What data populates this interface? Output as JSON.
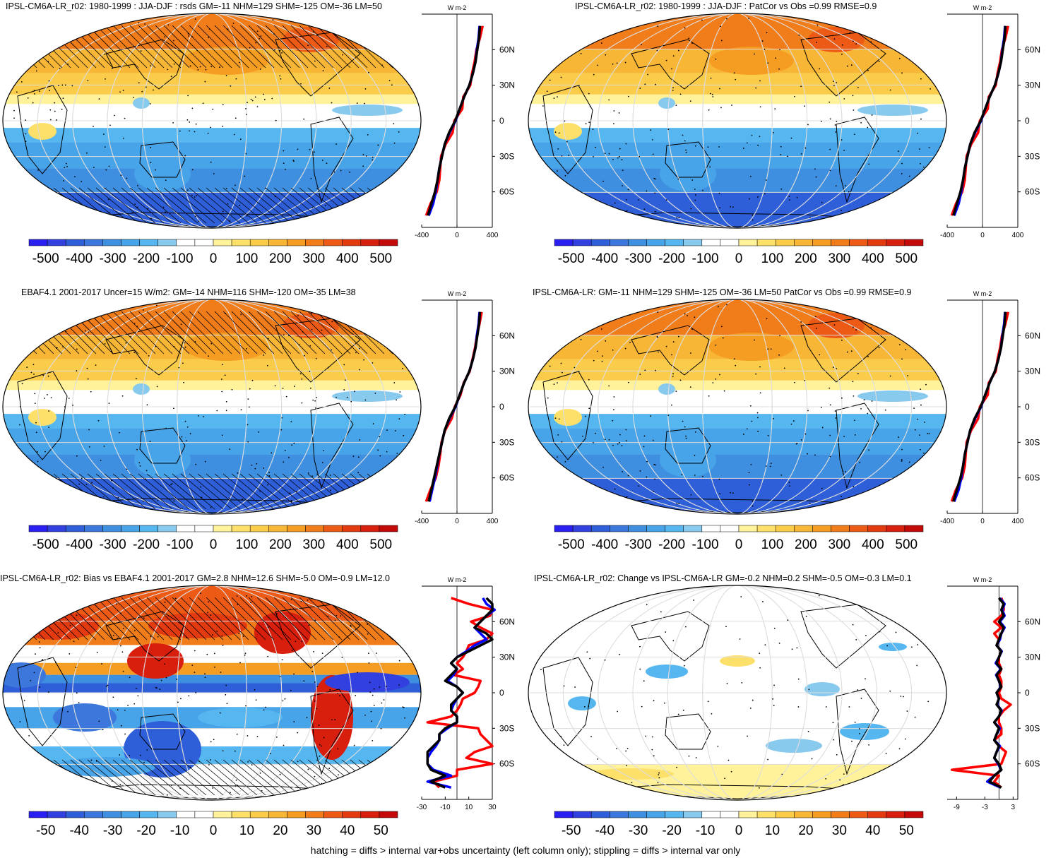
{
  "footnote": "hatching = diffs > internal var+obs uncertainty (left column only); stippling = diffs > internal var only",
  "colors": {
    "land_outline": "#000000",
    "graticule": "#dddddd",
    "model_line": "#0000ff",
    "obs_line": "#ff0000",
    "mean_line": "#000000"
  },
  "palette": [
    "#2a1ff2",
    "#3340e0",
    "#2f5fd8",
    "#3c78dc",
    "#3f8fe0",
    "#48a4e8",
    "#56b7f0",
    "#88c9ee",
    "#ffffff",
    "#ffffff",
    "#fff29a",
    "#fde06a",
    "#fbcc4a",
    "#f8b636",
    "#f59c22",
    "#f17c1a",
    "#ec5a15",
    "#e43a10",
    "#d81e0c",
    "#c40a08"
  ],
  "chart_data": [
    {
      "type": "heatmap",
      "title": "IPSL-CM6A-LR_r02: 1980-1999 : JJA-DJF : rsds GM=-11 NHM=129 SHM=-125 OM=-36 LM=50",
      "colorbar_ticks": [
        "-500",
        "-400",
        "-300",
        "-200",
        "-100",
        "0",
        "100",
        "200",
        "300",
        "400",
        "500"
      ],
      "colorbar_range": [
        -550,
        550
      ],
      "zonal_profile": {
        "unit": "W m-2",
        "xlim": [
          -400,
          400
        ],
        "xticks": [
          "-400",
          "0",
          "400"
        ],
        "lat_ticks": [
          "60N",
          "30N",
          "0",
          "30S",
          "60S"
        ],
        "lat": [
          -80,
          -70,
          -60,
          -50,
          -40,
          -30,
          -20,
          -10,
          0,
          10,
          20,
          30,
          40,
          50,
          60,
          70,
          80
        ],
        "series": [
          {
            "color": "black",
            "values": [
              -330,
              -290,
              -250,
              -220,
              -200,
              -170,
              -140,
              -90,
              -20,
              30,
              80,
              140,
              180,
              210,
              230,
              250,
              260
            ]
          },
          {
            "color": "blue",
            "values": [
              -320,
              -270,
              -240,
              -220,
              -200,
              -170,
              -140,
              -85,
              -15,
              30,
              80,
              140,
              180,
              210,
              225,
              245,
              255
            ]
          },
          {
            "color": "red",
            "values": [
              -350,
              -300,
              -230,
              -200,
              -190,
              -180,
              -130,
              -50,
              -30,
              60,
              70,
              150,
              170,
              200,
              220,
              260,
              290
            ]
          }
        ]
      }
    },
    {
      "type": "heatmap",
      "title": "IPSL-CM6A-LR_r02: 1980-1999 : JJA-DJF : PatCor vs Obs =0.99 RMSE=0.9",
      "colorbar_ticks": [
        "-500",
        "-400",
        "-300",
        "-200",
        "-100",
        "0",
        "100",
        "200",
        "300",
        "400",
        "500"
      ],
      "colorbar_range": [
        -550,
        550
      ],
      "zonal_profile": {
        "unit": "W m-2",
        "xlim": [
          -400,
          400
        ],
        "xticks": [
          "-400",
          "0",
          "400"
        ],
        "lat_ticks": [
          "60N",
          "30N",
          "0",
          "30S",
          "60S"
        ],
        "lat": [
          -80,
          -70,
          -60,
          -50,
          -40,
          -30,
          -20,
          -10,
          0,
          10,
          20,
          30,
          40,
          50,
          60,
          70,
          80
        ],
        "series": [
          {
            "color": "black",
            "values": [
              -330,
              -290,
              -250,
              -220,
              -200,
              -170,
              -140,
              -90,
              -20,
              30,
              80,
              140,
              180,
              210,
              230,
              250,
              260
            ]
          },
          {
            "color": "blue",
            "values": [
              -320,
              -270,
              -240,
              -220,
              -200,
              -170,
              -140,
              -85,
              -15,
              30,
              80,
              140,
              180,
              210,
              225,
              245,
              255
            ]
          },
          {
            "color": "red",
            "values": [
              -350,
              -300,
              -230,
              -200,
              -190,
              -180,
              -130,
              -50,
              -30,
              60,
              70,
              150,
              170,
              200,
              220,
              260,
              290
            ]
          }
        ]
      }
    },
    {
      "type": "heatmap",
      "title": "EBAF4.1 2001-2017 Uncer=15 W/m2: GM=-14 NHM=116 SHM=-120 OM=-35 LM=38",
      "colorbar_ticks": [
        "-500",
        "-400",
        "-300",
        "-200",
        "-100",
        "0",
        "100",
        "200",
        "300",
        "400",
        "500"
      ],
      "colorbar_range": [
        -550,
        550
      ],
      "zonal_profile": {
        "unit": "W m-2",
        "xlim": [
          -400,
          400
        ],
        "xticks": [
          "-400",
          "0",
          "400"
        ],
        "lat_ticks": [
          "60N",
          "30N",
          "0",
          "30S",
          "60S"
        ],
        "lat": [
          -80,
          -70,
          -60,
          -50,
          -40,
          -30,
          -20,
          -10,
          0,
          10,
          20,
          30,
          40,
          50,
          60,
          70,
          80
        ],
        "series": [
          {
            "color": "black",
            "values": [
              -320,
              -290,
              -260,
              -230,
              -200,
              -170,
              -140,
              -90,
              -20,
              30,
              80,
              140,
              180,
              210,
              230,
              250,
              260
            ]
          },
          {
            "color": "blue",
            "values": [
              -310,
              -280,
              -250,
              -225,
              -200,
              -170,
              -140,
              -85,
              -15,
              30,
              80,
              140,
              180,
              210,
              225,
              245,
              255
            ]
          },
          {
            "color": "red",
            "values": [
              -350,
              -300,
              -240,
              -210,
              -190,
              -175,
              -135,
              -60,
              -25,
              40,
              75,
              145,
              175,
              205,
              225,
              255,
              280
            ]
          }
        ]
      }
    },
    {
      "type": "heatmap",
      "title": "IPSL-CM6A-LR: GM=-11 NHM=129 SHM=-125 OM=-36 LM=50 PatCor vs Obs =0.99 RMSE=0.9",
      "colorbar_ticks": [
        "-500",
        "-400",
        "-300",
        "-200",
        "-100",
        "0",
        "100",
        "200",
        "300",
        "400",
        "500"
      ],
      "colorbar_range": [
        -550,
        550
      ],
      "zonal_profile": {
        "unit": "W m-2",
        "xlim": [
          -400,
          400
        ],
        "xticks": [
          "-400",
          "0",
          "400"
        ],
        "lat_ticks": [
          "60N",
          "30N",
          "0",
          "30S",
          "60S"
        ],
        "lat": [
          -80,
          -70,
          -60,
          -50,
          -40,
          -30,
          -20,
          -10,
          0,
          10,
          20,
          30,
          40,
          50,
          60,
          70,
          80
        ],
        "series": [
          {
            "color": "black",
            "values": [
              -330,
              -290,
              -250,
              -220,
              -200,
              -170,
              -140,
              -90,
              -20,
              30,
              80,
              140,
              180,
              210,
              230,
              250,
              260
            ]
          },
          {
            "color": "blue",
            "values": [
              -320,
              -270,
              -240,
              -220,
              -200,
              -170,
              -140,
              -85,
              -15,
              30,
              80,
              140,
              180,
              210,
              225,
              245,
              255
            ]
          },
          {
            "color": "red",
            "values": [
              -350,
              -300,
              -230,
              -200,
              -190,
              -180,
              -130,
              -50,
              -30,
              60,
              70,
              150,
              170,
              200,
              220,
              260,
              290
            ]
          }
        ]
      }
    },
    {
      "type": "heatmap",
      "title": "IPSL-CM6A-LR_r02: Bias vs EBAF4.1 2001-2017 GM=2.8 NHM=12.6 SHM=-5.0 OM=-0.9 LM=12.0",
      "colorbar_ticks": [
        "-50",
        "-40",
        "-30",
        "-20",
        "-10",
        "0",
        "10",
        "20",
        "30",
        "40",
        "50"
      ],
      "colorbar_range": [
        -55,
        55
      ],
      "zonal_profile": {
        "unit": "W m-2",
        "xlim": [
          -30,
          30
        ],
        "xticks": [
          "-30",
          "-10",
          "10",
          "30"
        ],
        "lat_ticks": [
          "60N",
          "30N",
          "0",
          "30S",
          "60S"
        ],
        "lat": [
          -80,
          -75,
          -70,
          -65,
          -60,
          -55,
          -50,
          -45,
          -40,
          -35,
          -30,
          -25,
          -20,
          -15,
          -10,
          -5,
          0,
          5,
          10,
          15,
          20,
          25,
          30,
          35,
          40,
          45,
          50,
          55,
          60,
          65,
          70,
          75,
          80
        ],
        "series": [
          {
            "color": "black",
            "values": [
              -10,
              -22,
              -10,
              -22,
              -25,
              -25,
              -25,
              -20,
              -15,
              -15,
              -10,
              0,
              0,
              -5,
              -5,
              0,
              5,
              0,
              -10,
              -5,
              0,
              -5,
              0,
              10,
              20,
              30,
              25,
              15,
              20,
              25,
              30,
              30,
              25
            ]
          },
          {
            "color": "blue",
            "values": [
              -5,
              -25,
              -5,
              -20,
              -25,
              -25,
              -22,
              -18,
              -15,
              -15,
              -8,
              0,
              0,
              -5,
              -3,
              0,
              5,
              0,
              -8,
              -3,
              0,
              -5,
              0,
              8,
              15,
              25,
              20,
              15,
              20,
              25,
              32,
              25,
              22
            ]
          },
          {
            "color": "red",
            "values": [
              -15,
              -20,
              0,
              0,
              30,
              8,
              15,
              30,
              25,
              20,
              18,
              -25,
              -5,
              0,
              3,
              5,
              15,
              18,
              20,
              -3,
              5,
              0,
              5,
              8,
              10,
              25,
              30,
              20,
              12,
              28,
              30,
              10,
              -5
            ]
          }
        ]
      }
    },
    {
      "type": "heatmap",
      "title": "IPSL-CM6A-LR_r02: Change vs IPSL-CM6A-LR GM=-0.2 NHM=0.2 SHM=-0.5 OM=-0.3 LM=0.1",
      "colorbar_ticks": [
        "-50",
        "-40",
        "-30",
        "-20",
        "-10",
        "0",
        "10",
        "20",
        "30",
        "40",
        "50"
      ],
      "colorbar_range": [
        -55,
        55
      ],
      "zonal_profile": {
        "unit": "W m-2",
        "xlim": [
          -11,
          4
        ],
        "xticks": [
          "-9",
          "-3",
          "3"
        ],
        "lat_ticks": [
          "60N",
          "30N",
          "0",
          "30S",
          "60S"
        ],
        "lat": [
          -80,
          -75,
          -70,
          -65,
          -60,
          -55,
          -50,
          -45,
          -40,
          -35,
          -30,
          -25,
          -20,
          -15,
          -10,
          -5,
          0,
          5,
          10,
          15,
          20,
          25,
          30,
          35,
          40,
          45,
          50,
          55,
          60,
          65,
          70,
          75,
          80
        ],
        "series": [
          {
            "color": "black",
            "values": [
              0.5,
              -2,
              -1,
              0.5,
              0,
              -1,
              -0.5,
              0,
              -1,
              -0.5,
              0,
              -1,
              0,
              0.5,
              -0.5,
              0,
              -0.5,
              0.5,
              0,
              -0.5,
              0.5,
              -0.5,
              0,
              0.5,
              -0.5,
              0,
              0.5,
              1,
              0,
              1,
              0.5,
              1,
              0
            ]
          },
          {
            "color": "blue",
            "values": [
              0.3,
              -2.5,
              -1,
              0.5,
              -0.2,
              -1,
              -0.5,
              0.2,
              -1,
              -0.5,
              0.2,
              -1,
              0,
              0.6,
              -0.4,
              0,
              -0.5,
              0.4,
              0,
              -0.6,
              0.4,
              -0.7,
              0,
              0.6,
              -0.5,
              0.2,
              0.5,
              1.2,
              0.2,
              1.2,
              0.7,
              1.2,
              0.2
            ]
          },
          {
            "color": "red",
            "values": [
              0.5,
              -1,
              0,
              -10,
              0.5,
              1,
              1.5,
              0,
              -1,
              0.5,
              0.5,
              0,
              0,
              1,
              2.5,
              0.5,
              0,
              0.5,
              0.5,
              0,
              0.5,
              0,
              0,
              0.5,
              -0.5,
              0,
              -1,
              0.5,
              -1,
              0.5,
              1,
              1,
              0.5
            ]
          }
        ]
      }
    }
  ]
}
